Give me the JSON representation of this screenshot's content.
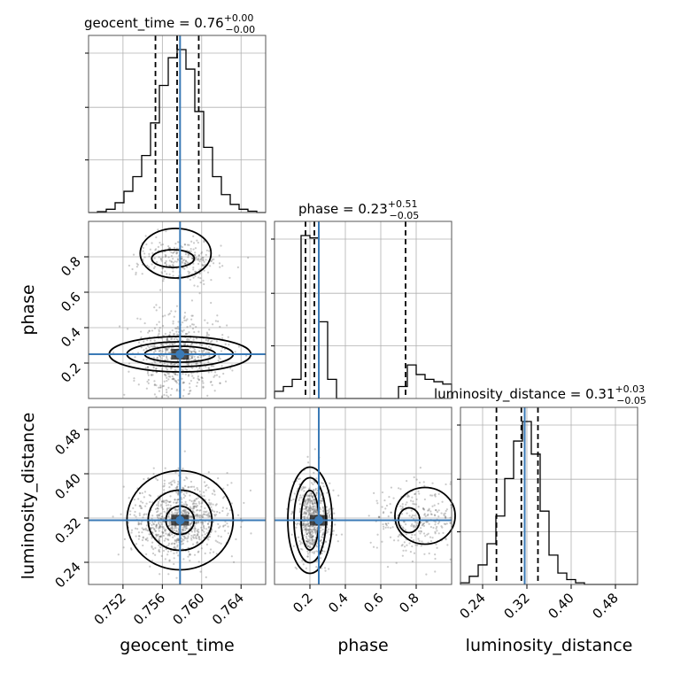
{
  "colors": {
    "truth": "#3a7ab6",
    "hist": "#000000",
    "grid": "#b0b0b0",
    "scatter": "#666666"
  },
  "titles": [
    {
      "param": "geocent_time",
      "median": "0.76",
      "plus": "+0.00",
      "minus": "−0.00"
    },
    {
      "param": "phase",
      "median": "0.23",
      "plus": "+0.51",
      "minus": "−0.05"
    },
    {
      "param": "luminosity_distance",
      "median": "0.31",
      "plus": "+0.03",
      "minus": "−0.05"
    }
  ],
  "axis_labels": {
    "geocent_time": "geocent_time",
    "phase": "phase",
    "luminosity_distance": "luminosity_distance"
  },
  "chart_data": {
    "type": "corner",
    "parameters": [
      "geocent_time",
      "phase",
      "luminosity_distance"
    ],
    "truths": {
      "geocent_time": 0.7578,
      "phase": 0.25,
      "luminosity_distance": 0.316
    },
    "ranges": {
      "geocent_time": [
        0.7485,
        0.7665
      ],
      "phase": [
        0.0,
        1.0
      ],
      "luminosity_distance": [
        0.2,
        0.52
      ]
    },
    "ticks": {
      "geocent_time": {
        "values": [
          0.752,
          0.756,
          0.76,
          0.764
        ],
        "labels": [
          "0.752",
          "0.756",
          "0.760",
          "0.764"
        ]
      },
      "phase": {
        "values": [
          0.2,
          0.4,
          0.6,
          0.8
        ],
        "labels": [
          "0.2",
          "0.4",
          "0.6",
          "0.8"
        ]
      },
      "luminosity_distance": {
        "values": [
          0.24,
          0.32,
          0.4,
          0.48
        ],
        "labels": [
          "0.24",
          "0.32",
          "0.40",
          "0.48"
        ]
      }
    },
    "quantiles": {
      "geocent_time": [
        0.7553,
        0.7575,
        0.7597
      ],
      "phase": [
        0.175,
        0.225,
        0.74
      ],
      "luminosity_distance": [
        0.265,
        0.31,
        0.34
      ]
    },
    "histograms": {
      "geocent_time": {
        "edges": [
          0.7485,
          0.7494,
          0.7503,
          0.7512,
          0.7521,
          0.753,
          0.7539,
          0.7548,
          0.7557,
          0.7566,
          0.7575,
          0.7584,
          0.7593,
          0.7602,
          0.7611,
          0.762,
          0.7629,
          0.7638,
          0.7647,
          0.7656,
          0.7665
        ],
        "counts": [
          0.0,
          0.005,
          0.02,
          0.06,
          0.13,
          0.22,
          0.35,
          0.55,
          0.78,
          0.95,
          1.0,
          0.88,
          0.62,
          0.4,
          0.22,
          0.11,
          0.05,
          0.02,
          0.008,
          0.0
        ]
      },
      "phase": {
        "edges": [
          0.0,
          0.05,
          0.1,
          0.15,
          0.2,
          0.25,
          0.3,
          0.35,
          0.4,
          0.45,
          0.5,
          0.55,
          0.6,
          0.65,
          0.7,
          0.75,
          0.8,
          0.85,
          0.9,
          0.95,
          1.0
        ],
        "counts": [
          0.03,
          0.05,
          0.08,
          0.68,
          0.67,
          0.32,
          0.08,
          0.0,
          0.0,
          0.0,
          0.0,
          0.0,
          0.0,
          0.0,
          0.05,
          0.14,
          0.1,
          0.08,
          0.07,
          0.06
        ]
      },
      "luminosity_distance": {
        "edges": [
          0.2,
          0.216,
          0.232,
          0.248,
          0.264,
          0.28,
          0.296,
          0.312,
          0.328,
          0.344,
          0.36,
          0.376,
          0.392,
          0.408,
          0.424,
          0.44,
          0.456,
          0.472,
          0.488,
          0.504,
          0.52
        ],
        "counts": [
          0.01,
          0.05,
          0.12,
          0.25,
          0.42,
          0.65,
          0.88,
          1.0,
          0.8,
          0.45,
          0.18,
          0.07,
          0.03,
          0.01,
          0.0,
          0.0,
          0.0,
          0.0,
          0.0,
          0.0
        ]
      }
    }
  }
}
